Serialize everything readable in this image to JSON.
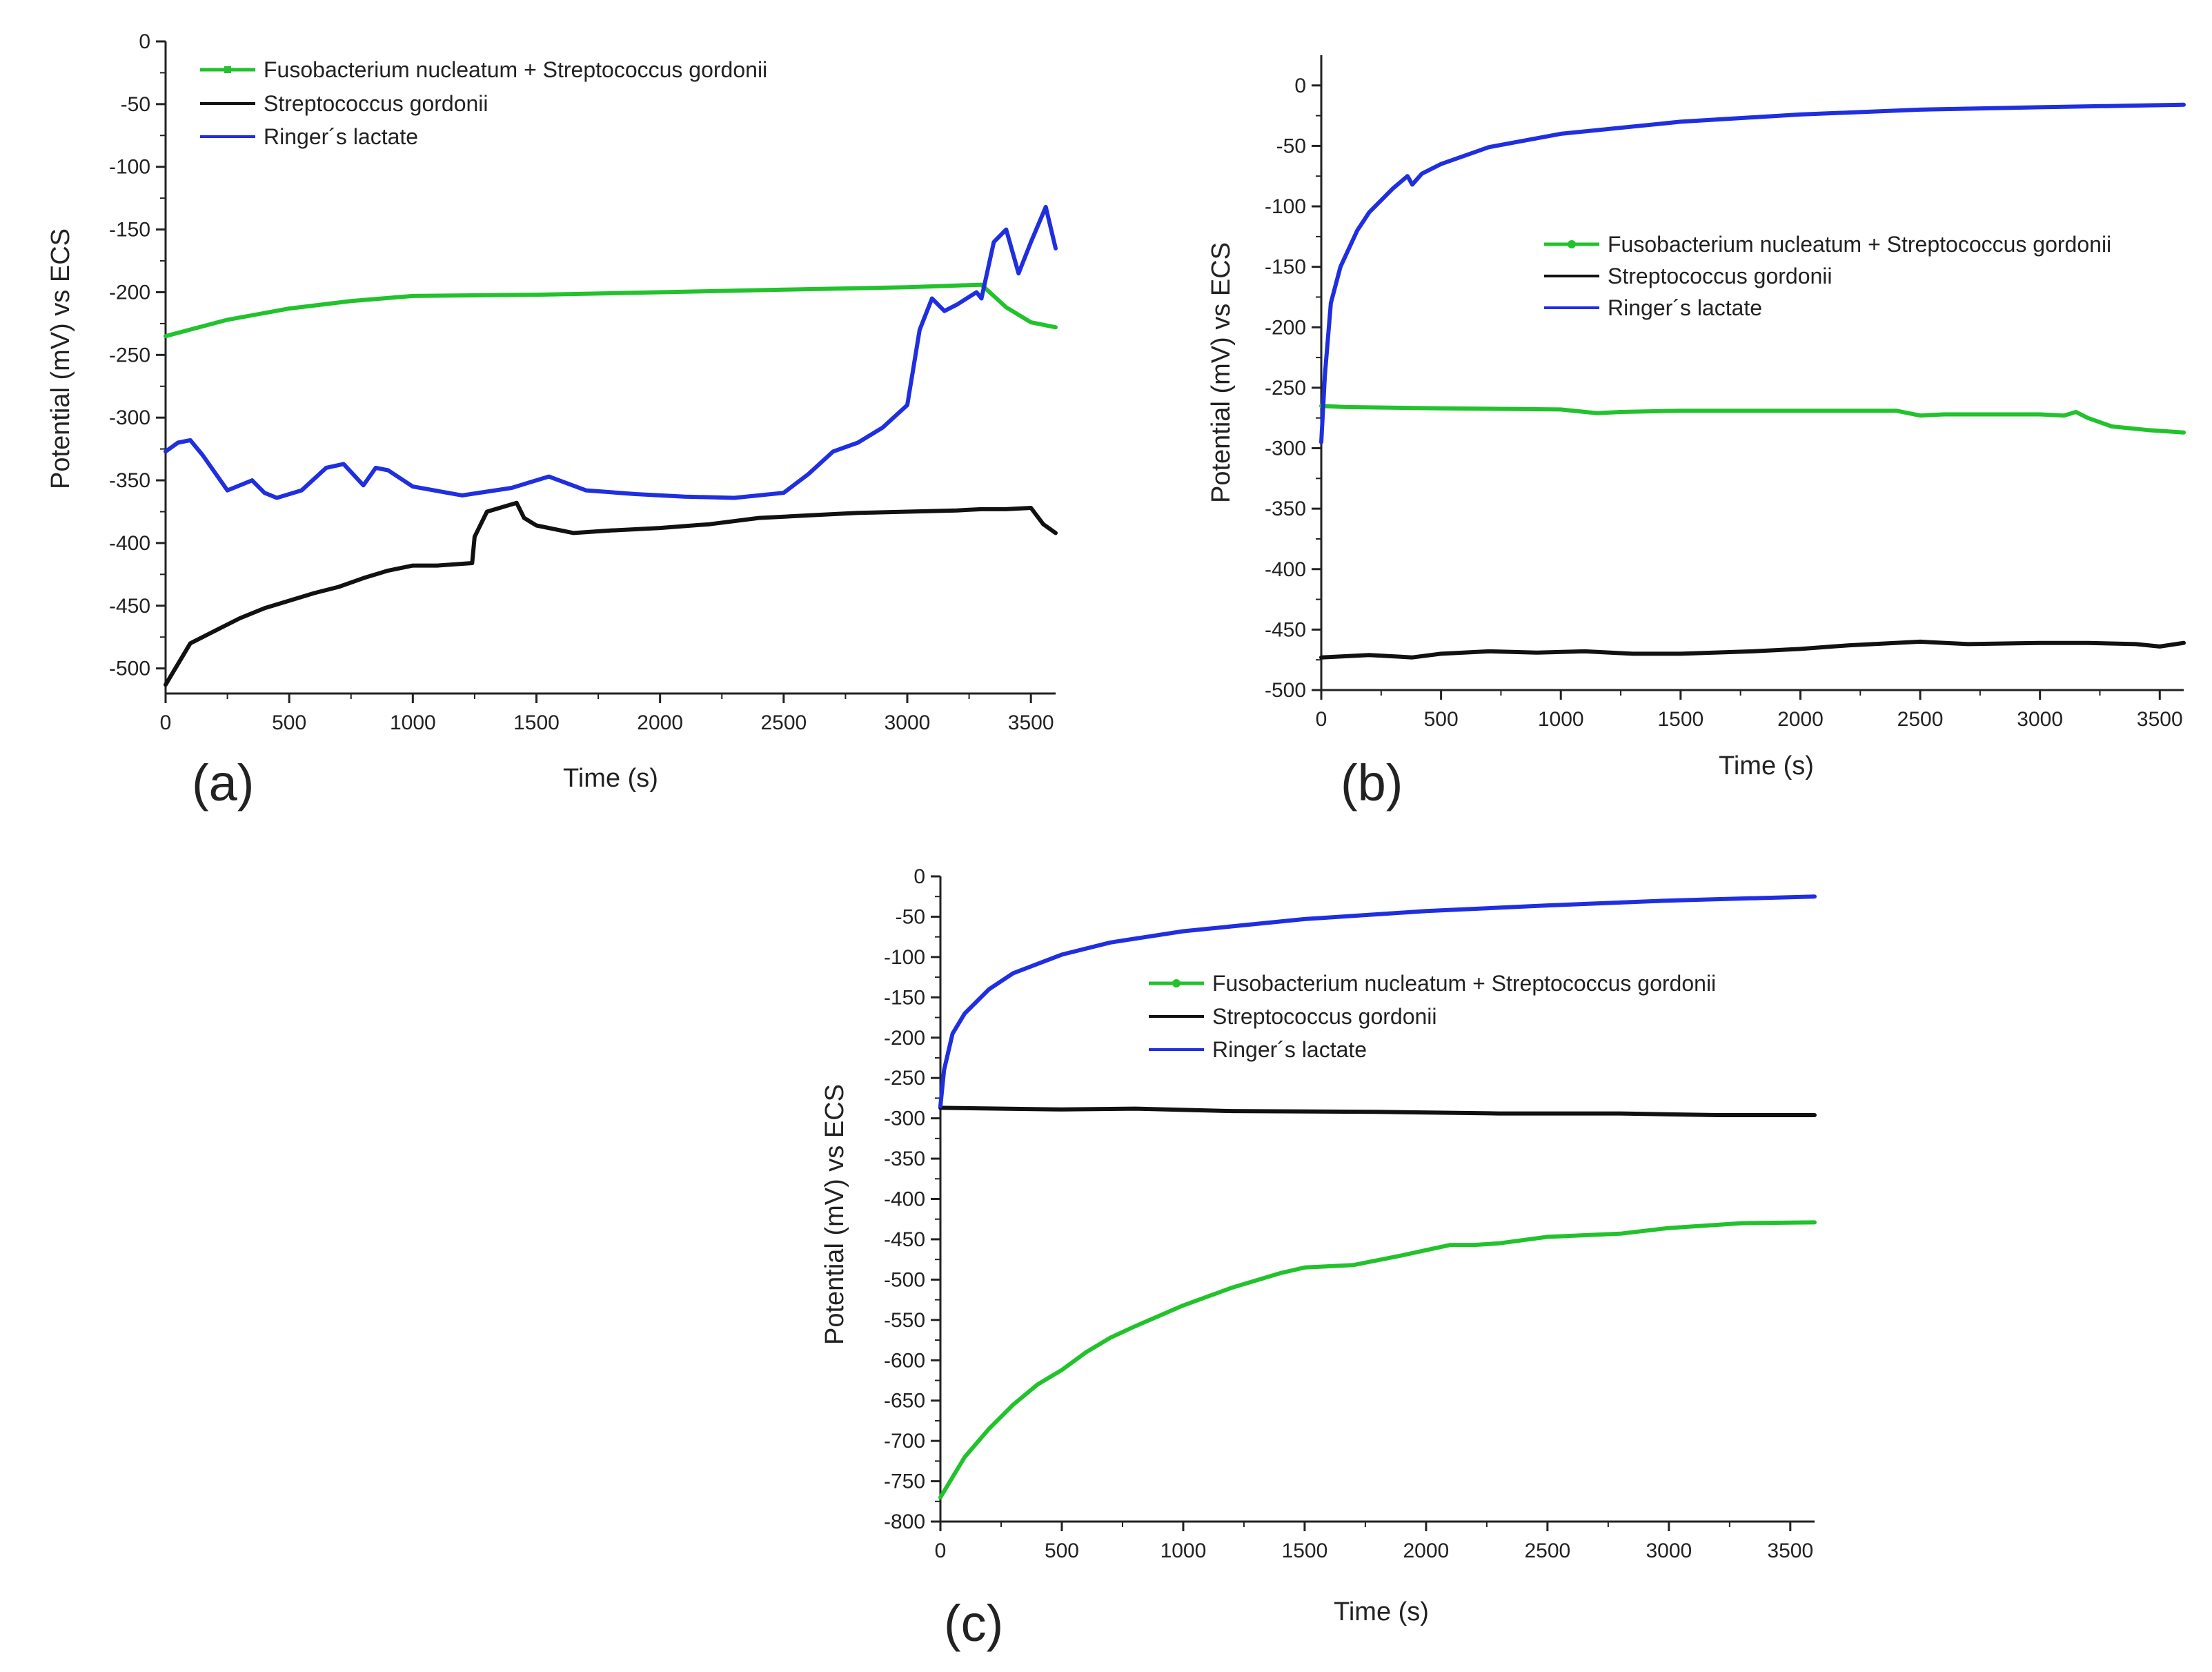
{
  "figure": {
    "xlabel": "Time (s)",
    "ylabel": "Potential (mV) vs ECS"
  },
  "colors": {
    "green": "#22c22c",
    "black": "#111111",
    "blue": "#1f2fe0",
    "axis": "#222222"
  },
  "chart_data": [
    {
      "type": "line",
      "panel_label": "(a)",
      "title": "",
      "xlabel": "Time (s)",
      "ylabel": "Potential (mV) vs ECS",
      "xlim": [
        0,
        3600
      ],
      "ylim": [
        -520,
        0
      ],
      "xticks": [
        0,
        500,
        1000,
        1500,
        2000,
        2500,
        3000,
        3500
      ],
      "yticks": [
        0,
        -50,
        -100,
        -150,
        -200,
        -250,
        -300,
        -350,
        -400,
        -450,
        -500
      ],
      "legend_position": "top-left",
      "series": [
        {
          "name": "Fusobacterium nucleatum + Streptococcus gordonii",
          "color": "green",
          "x": [
            0,
            250,
            500,
            750,
            1000,
            1500,
            2000,
            2500,
            3000,
            3300,
            3400,
            3500,
            3600
          ],
          "values": [
            -235,
            -222,
            -213,
            -207,
            -203,
            -202,
            -200,
            -198,
            -196,
            -194,
            -212,
            -224,
            -228
          ]
        },
        {
          "name": "Streptococcus gordonii",
          "color": "black",
          "x": [
            0,
            100,
            200,
            300,
            400,
            500,
            600,
            700,
            800,
            900,
            1000,
            1100,
            1240,
            1250,
            1300,
            1420,
            1450,
            1500,
            1650,
            1800,
            2000,
            2200,
            2400,
            2600,
            2800,
            3000,
            3200,
            3300,
            3400,
            3500,
            3550,
            3600
          ],
          "values": [
            -513,
            -480,
            -470,
            -460,
            -452,
            -446,
            -440,
            -435,
            -428,
            -422,
            -418,
            -418,
            -416,
            -395,
            -375,
            -368,
            -380,
            -386,
            -392,
            -390,
            -388,
            -385,
            -380,
            -378,
            -376,
            -375,
            -374,
            -373,
            -373,
            -372,
            -385,
            -392
          ]
        },
        {
          "name": "Ringer´s lactate",
          "color": "blue",
          "x": [
            0,
            50,
            100,
            150,
            250,
            350,
            400,
            450,
            550,
            650,
            720,
            800,
            850,
            900,
            1000,
            1200,
            1400,
            1550,
            1700,
            1900,
            2100,
            2300,
            2500,
            2600,
            2700,
            2800,
            2900,
            3000,
            3050,
            3100,
            3150,
            3200,
            3280,
            3300,
            3350,
            3400,
            3450,
            3500,
            3560,
            3600
          ],
          "values": [
            -327,
            -320,
            -318,
            -330,
            -358,
            -350,
            -360,
            -364,
            -358,
            -340,
            -337,
            -354,
            -340,
            -342,
            -355,
            -362,
            -356,
            -347,
            -358,
            -361,
            -363,
            -364,
            -360,
            -345,
            -327,
            -320,
            -308,
            -290,
            -230,
            -205,
            -215,
            -210,
            -200,
            -205,
            -160,
            -150,
            -185,
            -160,
            -132,
            -165
          ]
        }
      ]
    },
    {
      "type": "line",
      "panel_label": "(b)",
      "title": "",
      "xlabel": "Time (s)",
      "ylabel": "Potential (mV) vs ECS",
      "xlim": [
        0,
        3600
      ],
      "ylim": [
        -500,
        25
      ],
      "xticks": [
        0,
        500,
        1000,
        1500,
        2000,
        2500,
        3000,
        3500
      ],
      "yticks": [
        0,
        -50,
        -100,
        -150,
        -200,
        -250,
        -300,
        -350,
        -400,
        -450,
        -500
      ],
      "legend_position": "center-right",
      "series": [
        {
          "name": "Fusobacterium nucleatum + Streptococcus gordonii",
          "color": "green",
          "x": [
            0,
            100,
            500,
            1000,
            1150,
            1250,
            1500,
            2000,
            2400,
            2500,
            2600,
            3000,
            3100,
            3150,
            3200,
            3300,
            3450,
            3600
          ],
          "values": [
            -265,
            -266,
            -267,
            -268,
            -271,
            -270,
            -269,
            -269,
            -269,
            -273,
            -272,
            -272,
            -273,
            -270,
            -275,
            -282,
            -285,
            -287
          ]
        },
        {
          "name": "Streptococcus gordonii",
          "color": "black",
          "x": [
            0,
            200,
            380,
            500,
            700,
            900,
            1100,
            1300,
            1500,
            1800,
            2000,
            2200,
            2500,
            2700,
            3000,
            3200,
            3400,
            3500,
            3600
          ],
          "values": [
            -473,
            -471,
            -473,
            -470,
            -468,
            -469,
            -468,
            -470,
            -470,
            -468,
            -466,
            -463,
            -460,
            -462,
            -461,
            -461,
            -462,
            -464,
            -461
          ]
        },
        {
          "name": "Ringer´s lactate",
          "color": "blue",
          "x": [
            0,
            15,
            40,
            80,
            150,
            200,
            300,
            360,
            380,
            420,
            500,
            700,
            1000,
            1500,
            2000,
            2500,
            3000,
            3600
          ],
          "values": [
            -295,
            -240,
            -180,
            -150,
            -120,
            -105,
            -85,
            -75,
            -82,
            -73,
            -65,
            -51,
            -40,
            -30,
            -24,
            -20,
            -18,
            -16
          ]
        }
      ]
    },
    {
      "type": "line",
      "panel_label": "(c)",
      "title": "",
      "xlabel": "Time (s)",
      "ylabel": "Potential (mV) vs ECS",
      "xlim": [
        0,
        3600
      ],
      "ylim": [
        -800,
        0
      ],
      "xticks": [
        0,
        500,
        1000,
        1500,
        2000,
        2500,
        3000,
        3500
      ],
      "yticks": [
        0,
        -50,
        -100,
        -150,
        -200,
        -250,
        -300,
        -350,
        -400,
        -450,
        -500,
        -550,
        -600,
        -650,
        -700,
        -750,
        -800
      ],
      "legend_position": "top-right",
      "series": [
        {
          "name": "Fusobacterium nucleatum + Streptococcus gordonii",
          "color": "green",
          "x": [
            0,
            100,
            200,
            300,
            400,
            500,
            600,
            700,
            800,
            1000,
            1200,
            1400,
            1500,
            1700,
            1900,
            2100,
            2200,
            2300,
            2500,
            2800,
            3000,
            3300,
            3600
          ],
          "values": [
            -770,
            -720,
            -685,
            -655,
            -630,
            -612,
            -590,
            -572,
            -558,
            -532,
            -510,
            -492,
            -485,
            -482,
            -470,
            -457,
            -457,
            -455,
            -447,
            -443,
            -436,
            -430,
            -429
          ]
        },
        {
          "name": "Streptococcus gordonii",
          "color": "black",
          "x": [
            0,
            500,
            800,
            1200,
            1800,
            2300,
            2800,
            3200,
            3600
          ],
          "values": [
            -287,
            -289,
            -288,
            -291,
            -292,
            -294,
            -294,
            -296,
            -296
          ]
        },
        {
          "name": "Ringer´s lactate",
          "color": "blue",
          "x": [
            0,
            15,
            50,
            100,
            200,
            300,
            500,
            700,
            1000,
            1500,
            2000,
            2500,
            3000,
            3600
          ],
          "values": [
            -285,
            -240,
            -195,
            -170,
            -140,
            -120,
            -97,
            -82,
            -68,
            -53,
            -43,
            -36,
            -30,
            -25
          ]
        }
      ]
    }
  ]
}
